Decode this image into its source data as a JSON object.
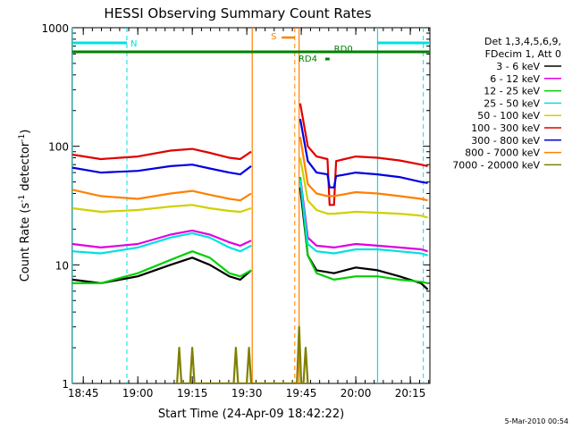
{
  "footer_stamp": "5-Mar-2010 00:54",
  "chart_data": {
    "type": "line",
    "title": "HESSI Observing Summary Count Rates",
    "xlabel": "Start Time (24-Apr-09 18:42:22)",
    "ylabel_prefix": "Count Rate (s",
    "ylabel_sup1": "-1",
    "ylabel_mid": " detector",
    "ylabel_sup2": "-1",
    "ylabel_suffix": ")",
    "yscale": "log",
    "ylim": [
      1,
      1000
    ],
    "xlim_minutes": [
      18.7,
      20.34
    ],
    "xticks": [
      {
        "t": "18:45",
        "m": 18.75
      },
      {
        "t": "19:00",
        "m": 19.0
      },
      {
        "t": "19:15",
        "m": 19.25
      },
      {
        "t": "19:30",
        "m": 19.5
      },
      {
        "t": "19:45",
        "m": 19.75
      },
      {
        "t": "20:00",
        "m": 20.0
      },
      {
        "t": "20:15",
        "m": 20.25
      }
    ],
    "yticks": [
      "1",
      "10",
      "100",
      "1000"
    ],
    "legend_header": [
      "Det 1,3,4,5,6,9,",
      "FDecim 1, Att 0"
    ],
    "series": [
      {
        "name": "3 - 6 keV",
        "color": "#000000",
        "values": [
          [
            18.7,
            7.5
          ],
          [
            18.83,
            7
          ],
          [
            19.0,
            8
          ],
          [
            19.15,
            10
          ],
          [
            19.25,
            11.5
          ],
          [
            19.33,
            10
          ],
          [
            19.42,
            8
          ],
          [
            19.47,
            7.5
          ],
          [
            19.52,
            9
          ],
          [
            19.525,
            null
          ],
          [
            19.74,
            null
          ],
          [
            19.745,
            45
          ],
          [
            19.78,
            12
          ],
          [
            19.82,
            9
          ],
          [
            19.9,
            8.5
          ],
          [
            20.0,
            9.5
          ],
          [
            20.1,
            9
          ],
          [
            20.2,
            8
          ],
          [
            20.3,
            7
          ],
          [
            20.33,
            6.2
          ]
        ]
      },
      {
        "name": "6 - 12 keV",
        "color": "#e000e0",
        "values": [
          [
            18.7,
            15
          ],
          [
            18.83,
            14
          ],
          [
            19.0,
            15
          ],
          [
            19.15,
            18
          ],
          [
            19.25,
            19.5
          ],
          [
            19.33,
            18
          ],
          [
            19.42,
            15.5
          ],
          [
            19.47,
            14.5
          ],
          [
            19.52,
            16
          ],
          [
            19.525,
            null
          ],
          [
            19.74,
            null
          ],
          [
            19.745,
            55
          ],
          [
            19.78,
            17
          ],
          [
            19.82,
            14.5
          ],
          [
            19.9,
            14
          ],
          [
            20.0,
            15
          ],
          [
            20.1,
            14.5
          ],
          [
            20.2,
            14
          ],
          [
            20.3,
            13.5
          ],
          [
            20.33,
            13
          ]
        ]
      },
      {
        "name": "12 - 25 keV",
        "color": "#00d000",
        "values": [
          [
            18.7,
            7
          ],
          [
            18.83,
            7
          ],
          [
            19.0,
            8.5
          ],
          [
            19.15,
            11
          ],
          [
            19.25,
            13
          ],
          [
            19.33,
            11.5
          ],
          [
            19.42,
            8.5
          ],
          [
            19.47,
            8
          ],
          [
            19.52,
            9
          ],
          [
            19.525,
            null
          ],
          [
            19.74,
            null
          ],
          [
            19.745,
            55
          ],
          [
            19.78,
            12
          ],
          [
            19.82,
            8.5
          ],
          [
            19.9,
            7.5
          ],
          [
            20.0,
            8
          ],
          [
            20.1,
            8
          ],
          [
            20.2,
            7.5
          ],
          [
            20.3,
            7.2
          ],
          [
            20.33,
            7
          ]
        ]
      },
      {
        "name": "25 - 50 keV",
        "color": "#00e0e0",
        "values": [
          [
            18.7,
            13
          ],
          [
            18.83,
            12.5
          ],
          [
            19.0,
            14
          ],
          [
            19.15,
            17
          ],
          [
            19.25,
            18.5
          ],
          [
            19.33,
            17
          ],
          [
            19.42,
            14
          ],
          [
            19.47,
            13
          ],
          [
            19.52,
            14.5
          ],
          [
            19.525,
            null
          ],
          [
            19.74,
            null
          ],
          [
            19.745,
            52
          ],
          [
            19.78,
            15
          ],
          [
            19.82,
            13
          ],
          [
            19.9,
            12.5
          ],
          [
            20.0,
            13.5
          ],
          [
            20.1,
            13.5
          ],
          [
            20.2,
            13
          ],
          [
            20.3,
            12.5
          ],
          [
            20.33,
            12
          ]
        ]
      },
      {
        "name": "50 - 100 keV",
        "color": "#d0d000",
        "values": [
          [
            18.7,
            30
          ],
          [
            18.83,
            28
          ],
          [
            19.0,
            29
          ],
          [
            19.15,
            31
          ],
          [
            19.25,
            32
          ],
          [
            19.33,
            30
          ],
          [
            19.42,
            28.5
          ],
          [
            19.47,
            28
          ],
          [
            19.52,
            30
          ],
          [
            19.525,
            null
          ],
          [
            19.74,
            null
          ],
          [
            19.745,
            80
          ],
          [
            19.78,
            35
          ],
          [
            19.82,
            29
          ],
          [
            19.87,
            27
          ],
          [
            19.9,
            27
          ],
          [
            20.0,
            28
          ],
          [
            20.1,
            27.5
          ],
          [
            20.2,
            27
          ],
          [
            20.3,
            26
          ],
          [
            20.33,
            25
          ]
        ]
      },
      {
        "name": "100 - 300 keV",
        "color": "#e00000",
        "values": [
          [
            18.7,
            85
          ],
          [
            18.83,
            78
          ],
          [
            19.0,
            82
          ],
          [
            19.15,
            92
          ],
          [
            19.25,
            95
          ],
          [
            19.33,
            88
          ],
          [
            19.42,
            80
          ],
          [
            19.47,
            78
          ],
          [
            19.52,
            90
          ],
          [
            19.525,
            null
          ],
          [
            19.74,
            null
          ],
          [
            19.745,
            230
          ],
          [
            19.78,
            100
          ],
          [
            19.82,
            82
          ],
          [
            19.87,
            78
          ],
          [
            19.88,
            32
          ],
          [
            19.9,
            32
          ],
          [
            19.91,
            75
          ],
          [
            20.0,
            82
          ],
          [
            20.1,
            80
          ],
          [
            20.2,
            76
          ],
          [
            20.3,
            70
          ],
          [
            20.33,
            68
          ]
        ]
      },
      {
        "name": "300 - 800 keV",
        "color": "#0000e0",
        "values": [
          [
            18.7,
            66
          ],
          [
            18.83,
            60
          ],
          [
            19.0,
            62
          ],
          [
            19.15,
            68
          ],
          [
            19.25,
            70
          ],
          [
            19.33,
            65
          ],
          [
            19.42,
            60
          ],
          [
            19.47,
            58
          ],
          [
            19.52,
            68
          ],
          [
            19.525,
            null
          ],
          [
            19.74,
            null
          ],
          [
            19.745,
            170
          ],
          [
            19.78,
            75
          ],
          [
            19.82,
            60
          ],
          [
            19.87,
            58
          ],
          [
            19.88,
            45
          ],
          [
            19.9,
            45
          ],
          [
            19.91,
            56
          ],
          [
            20.0,
            60
          ],
          [
            20.1,
            58
          ],
          [
            20.2,
            55
          ],
          [
            20.3,
            50
          ],
          [
            20.33,
            49
          ]
        ]
      },
      {
        "name": "800 - 7000 keV",
        "color": "#ff8000",
        "values": [
          [
            18.7,
            43
          ],
          [
            18.83,
            38
          ],
          [
            19.0,
            36
          ],
          [
            19.15,
            40
          ],
          [
            19.25,
            42
          ],
          [
            19.33,
            39
          ],
          [
            19.42,
            36
          ],
          [
            19.47,
            35
          ],
          [
            19.52,
            40
          ],
          [
            19.525,
            null
          ],
          [
            19.74,
            null
          ],
          [
            19.745,
            120
          ],
          [
            19.78,
            48
          ],
          [
            19.82,
            40
          ],
          [
            19.87,
            38
          ],
          [
            19.9,
            38
          ],
          [
            20.0,
            41
          ],
          [
            20.1,
            40
          ],
          [
            20.2,
            38
          ],
          [
            20.3,
            36
          ],
          [
            20.33,
            35
          ]
        ]
      },
      {
        "name": "7000 - 20000 keV",
        "color": "#808000",
        "values": [
          [
            19.18,
            1
          ],
          [
            19.19,
            2
          ],
          [
            19.2,
            1
          ],
          [
            19.24,
            1
          ],
          [
            19.25,
            2
          ],
          [
            19.26,
            1
          ],
          [
            19.44,
            1
          ],
          [
            19.45,
            2
          ],
          [
            19.46,
            1
          ],
          [
            19.5,
            1
          ],
          [
            19.51,
            2
          ],
          [
            19.52,
            1
          ],
          [
            19.73,
            1
          ],
          [
            19.74,
            3
          ],
          [
            19.75,
            1
          ],
          [
            19.76,
            1
          ],
          [
            19.77,
            2
          ],
          [
            19.78,
            1
          ]
        ]
      }
    ],
    "markers": {
      "N_label": "N",
      "S_label": "S",
      "RD0_label": "RD0",
      "RD4_label": "RD4",
      "N_bars": [
        [
          18.7,
          18.95
        ],
        [
          20.1,
          20.34
        ]
      ],
      "S_bar": [
        19.66,
        19.72
      ],
      "RD0_bar": [
        18.7,
        20.34
      ],
      "RD4_bar": [
        19.86,
        19.88
      ],
      "cyan_solid": [
        18.7,
        20.1
      ],
      "cyan_dashed": [
        18.95,
        20.31
      ],
      "orange_solid": [
        19.525,
        19.74
      ],
      "orange_dashed": [
        19.72
      ]
    }
  }
}
